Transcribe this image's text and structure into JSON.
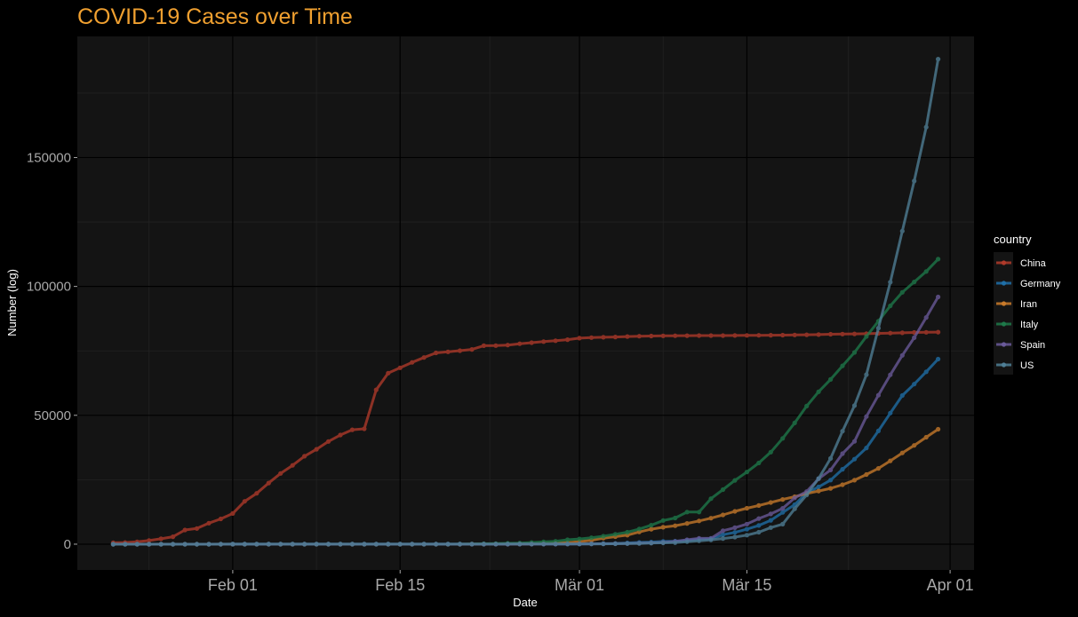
{
  "chart_data": {
    "type": "line",
    "title": "COVID-19 Cases over Time",
    "xlabel": "Date",
    "ylabel": "Number (log)",
    "x_start": "2020-01-22",
    "x_end": "2020-03-31",
    "xlim": [
      "2020-01-19",
      "2020-04-03"
    ],
    "ylim": [
      -10000,
      197000
    ],
    "x_ticks": [
      {
        "date": "2020-02-01",
        "label": "Feb 01"
      },
      {
        "date": "2020-02-15",
        "label": "Feb 15"
      },
      {
        "date": "2020-03-01",
        "label": "Mär 01"
      },
      {
        "date": "2020-03-15",
        "label": "Mär 15"
      },
      {
        "date": "2020-04-01",
        "label": "Apr 01"
      }
    ],
    "y_ticks": [
      {
        "value": 0,
        "label": "0"
      },
      {
        "value": 50000,
        "label": "50000"
      },
      {
        "value": 100000,
        "label": "100000"
      },
      {
        "value": 150000,
        "label": "150000"
      }
    ],
    "grid": true,
    "legend_title": "country",
    "legend_position": "right",
    "colors": {
      "background": "#000000",
      "panel": "#141414",
      "grid_major": "#000000",
      "grid_minor": "#222222",
      "title": "#f0a030"
    },
    "series": [
      {
        "name": "China",
        "color": "#b03a2a",
        "values": [
          548,
          643,
          920,
          1406,
          2075,
          2877,
          5509,
          6087,
          8141,
          9802,
          11891,
          16630,
          19716,
          23707,
          27440,
          30587,
          34110,
          36814,
          39829,
          42354,
          44386,
          44759,
          59895,
          66358,
          68413,
          70513,
          72434,
          74211,
          74619,
          75077,
          75550,
          77001,
          77022,
          77241,
          77754,
          78166,
          78600,
          78928,
          79356,
          79932,
          80136,
          80261,
          80386,
          80537,
          80690,
          80770,
          80823,
          80860,
          80887,
          80921,
          80932,
          80945,
          80977,
          81003,
          81033,
          81058,
          81102,
          81156,
          81250,
          81305,
          81435,
          81498,
          81591,
          81661,
          81782,
          81897,
          81999,
          82122,
          82198,
          82279
        ]
      },
      {
        "name": "Germany",
        "color": "#1f6fa8",
        "values": [
          0,
          0,
          0,
          0,
          0,
          1,
          4,
          4,
          4,
          5,
          8,
          10,
          12,
          12,
          12,
          12,
          13,
          13,
          14,
          14,
          16,
          16,
          16,
          16,
          16,
          16,
          16,
          16,
          16,
          16,
          16,
          16,
          16,
          16,
          17,
          27,
          46,
          48,
          79,
          130,
          159,
          196,
          262,
          482,
          670,
          799,
          1040,
          1176,
          1457,
          1908,
          2078,
          3675,
          4585,
          5795,
          7272,
          9257,
          12327,
          15320,
          19848,
          22213,
          24873,
          29056,
          32986,
          37323,
          43938,
          50871,
          57695,
          62095,
          66885,
          71808
        ]
      },
      {
        "name": "Iran",
        "color": "#c87a2a",
        "values": [
          0,
          0,
          0,
          0,
          0,
          0,
          0,
          0,
          0,
          0,
          0,
          0,
          0,
          0,
          0,
          0,
          0,
          0,
          0,
          0,
          0,
          0,
          0,
          0,
          0,
          0,
          0,
          0,
          2,
          5,
          18,
          28,
          43,
          61,
          95,
          139,
          245,
          388,
          593,
          978,
          1501,
          2336,
          2922,
          3513,
          4747,
          5823,
          6566,
          7161,
          8042,
          9000,
          10075,
          11364,
          12729,
          13938,
          14991,
          16169,
          17361,
          18407,
          19644,
          20610,
          21638,
          23049,
          24811,
          27017,
          29406,
          32332,
          35408,
          38309,
          41495,
          44605
        ]
      },
      {
        "name": "Italy",
        "color": "#1e7a4a",
        "values": [
          0,
          0,
          0,
          0,
          0,
          0,
          0,
          0,
          0,
          2,
          2,
          2,
          2,
          2,
          2,
          2,
          3,
          3,
          3,
          3,
          3,
          3,
          3,
          3,
          3,
          3,
          3,
          3,
          3,
          20,
          62,
          155,
          229,
          322,
          453,
          655,
          888,
          1128,
          1694,
          2036,
          2502,
          3089,
          3858,
          4636,
          5883,
          7375,
          9172,
          10149,
          12462,
          12462,
          17660,
          21157,
          24747,
          27980,
          31506,
          35713,
          41035,
          47021,
          53578,
          59138,
          63927,
          69176,
          74386,
          80589,
          86498,
          92472,
          97689,
          101739,
          105792,
          110574
        ]
      },
      {
        "name": "Spain",
        "color": "#6a5a9a",
        "values": [
          0,
          0,
          0,
          0,
          0,
          0,
          0,
          0,
          0,
          0,
          1,
          1,
          1,
          1,
          1,
          1,
          1,
          1,
          1,
          2,
          2,
          2,
          2,
          2,
          2,
          2,
          2,
          2,
          2,
          2,
          2,
          2,
          2,
          2,
          6,
          13,
          15,
          32,
          45,
          84,
          120,
          165,
          222,
          259,
          400,
          500,
          673,
          1073,
          1695,
          2277,
          2277,
          5232,
          6391,
          7798,
          9942,
          11748,
          13910,
          17963,
          20410,
          25374,
          28768,
          35136,
          39885,
          49515,
          57786,
          65719,
          73235,
          80110,
          87956,
          95923
        ]
      },
      {
        "name": "US",
        "color": "#4f7f96",
        "values": [
          1,
          1,
          2,
          2,
          5,
          5,
          5,
          5,
          5,
          7,
          8,
          8,
          11,
          11,
          11,
          11,
          11,
          11,
          11,
          11,
          12,
          12,
          13,
          13,
          13,
          13,
          13,
          13,
          13,
          13,
          15,
          15,
          15,
          51,
          51,
          57,
          58,
          60,
          68,
          74,
          98,
          118,
          149,
          217,
          262,
          402,
          518,
          583,
          959,
          1281,
          1663,
          2179,
          2727,
          3499,
          4632,
          6421,
          7786,
          13680,
          19101,
          25493,
          33276,
          43847,
          53740,
          65778,
          83836,
          101657,
          121478,
          140886,
          161807,
          188172
        ]
      }
    ]
  }
}
